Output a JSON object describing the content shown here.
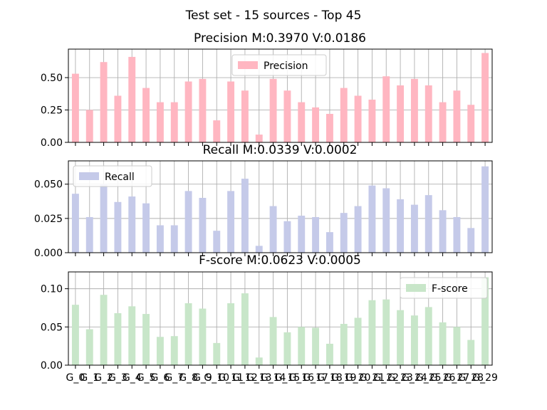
{
  "figure": {
    "suptitle": "Test set - 15 sources - Top 45"
  },
  "chart_data": [
    {
      "type": "bar",
      "title": "Precision M:0.3970 V:0.0186",
      "xlabel": "",
      "ylabel": "",
      "ylim": [
        0,
        0.72
      ],
      "yticks": [
        "0.00",
        "0.25",
        "0.50"
      ],
      "ytick_values": [
        0,
        0.25,
        0.5
      ],
      "grid": true,
      "legend": "top-center",
      "categories": [
        "G_0",
        "G_1",
        "G_2",
        "G_3",
        "G_4",
        "G_5",
        "G_6",
        "G_7",
        "G_8",
        "G_9",
        "G_10",
        "G_11",
        "G_12",
        "G_13",
        "G_14",
        "G_15",
        "G_16",
        "G_17",
        "G_18",
        "G_19",
        "G_20",
        "G_21",
        "G_22",
        "G_23",
        "G_24",
        "G_25",
        "G_26",
        "G_27",
        "G_28",
        "G_29"
      ],
      "show_xticklabels": false,
      "series": [
        {
          "name": "Precision",
          "color": "#ffb6c1",
          "values": [
            0.53,
            0.25,
            0.62,
            0.36,
            0.66,
            0.42,
            0.31,
            0.31,
            0.47,
            0.49,
            0.17,
            0.47,
            0.4,
            0.06,
            0.49,
            0.4,
            0.31,
            0.27,
            0.22,
            0.42,
            0.36,
            0.33,
            0.51,
            0.44,
            0.49,
            0.44,
            0.31,
            0.4,
            0.29,
            0.69
          ]
        }
      ]
    },
    {
      "type": "bar",
      "title": "Recall M:0.0339 V:0.0002",
      "xlabel": "",
      "ylabel": "",
      "ylim": [
        0,
        0.067
      ],
      "yticks": [
        "0.000",
        "0.025",
        "0.050"
      ],
      "ytick_values": [
        0,
        0.025,
        0.05
      ],
      "grid": true,
      "legend": "top-left",
      "categories": [
        "G_0",
        "G_1",
        "G_2",
        "G_3",
        "G_4",
        "G_5",
        "G_6",
        "G_7",
        "G_8",
        "G_9",
        "G_10",
        "G_11",
        "G_12",
        "G_13",
        "G_14",
        "G_15",
        "G_16",
        "G_17",
        "G_18",
        "G_19",
        "G_20",
        "G_21",
        "G_22",
        "G_23",
        "G_24",
        "G_25",
        "G_26",
        "G_27",
        "G_28",
        "G_29"
      ],
      "show_xticklabels": false,
      "series": [
        {
          "name": "Recall",
          "color": "#c5cae9",
          "values": [
            0.043,
            0.026,
            0.05,
            0.037,
            0.041,
            0.036,
            0.02,
            0.02,
            0.045,
            0.04,
            0.016,
            0.045,
            0.054,
            0.005,
            0.034,
            0.023,
            0.027,
            0.026,
            0.015,
            0.029,
            0.034,
            0.049,
            0.047,
            0.039,
            0.035,
            0.042,
            0.031,
            0.026,
            0.018,
            0.063
          ]
        }
      ]
    },
    {
      "type": "bar",
      "title": "F-score M:0.0623 V:0.0005",
      "xlabel": "",
      "ylabel": "",
      "ylim": [
        0,
        0.122
      ],
      "yticks": [
        "0.00",
        "0.05",
        "0.10"
      ],
      "ytick_values": [
        0,
        0.05,
        0.1
      ],
      "grid": true,
      "legend": "top-right",
      "categories": [
        "G_0",
        "G_1",
        "G_2",
        "G_3",
        "G_4",
        "G_5",
        "G_6",
        "G_7",
        "G_8",
        "G_9",
        "G_10",
        "G_11",
        "G_12",
        "G_13",
        "G_14",
        "G_15",
        "G_16",
        "G_17",
        "G_18",
        "G_19",
        "G_20",
        "G_21",
        "G_22",
        "G_23",
        "G_24",
        "G_25",
        "G_26",
        "G_27",
        "G_28",
        "G_29"
      ],
      "show_xticklabels": true,
      "series": [
        {
          "name": "F-score",
          "color": "#c8e6c9",
          "values": [
            0.079,
            0.047,
            0.092,
            0.068,
            0.077,
            0.067,
            0.037,
            0.038,
            0.081,
            0.074,
            0.029,
            0.081,
            0.094,
            0.01,
            0.063,
            0.043,
            0.05,
            0.049,
            0.028,
            0.054,
            0.062,
            0.085,
            0.086,
            0.072,
            0.065,
            0.076,
            0.056,
            0.05,
            0.033,
            0.115
          ]
        }
      ]
    }
  ]
}
